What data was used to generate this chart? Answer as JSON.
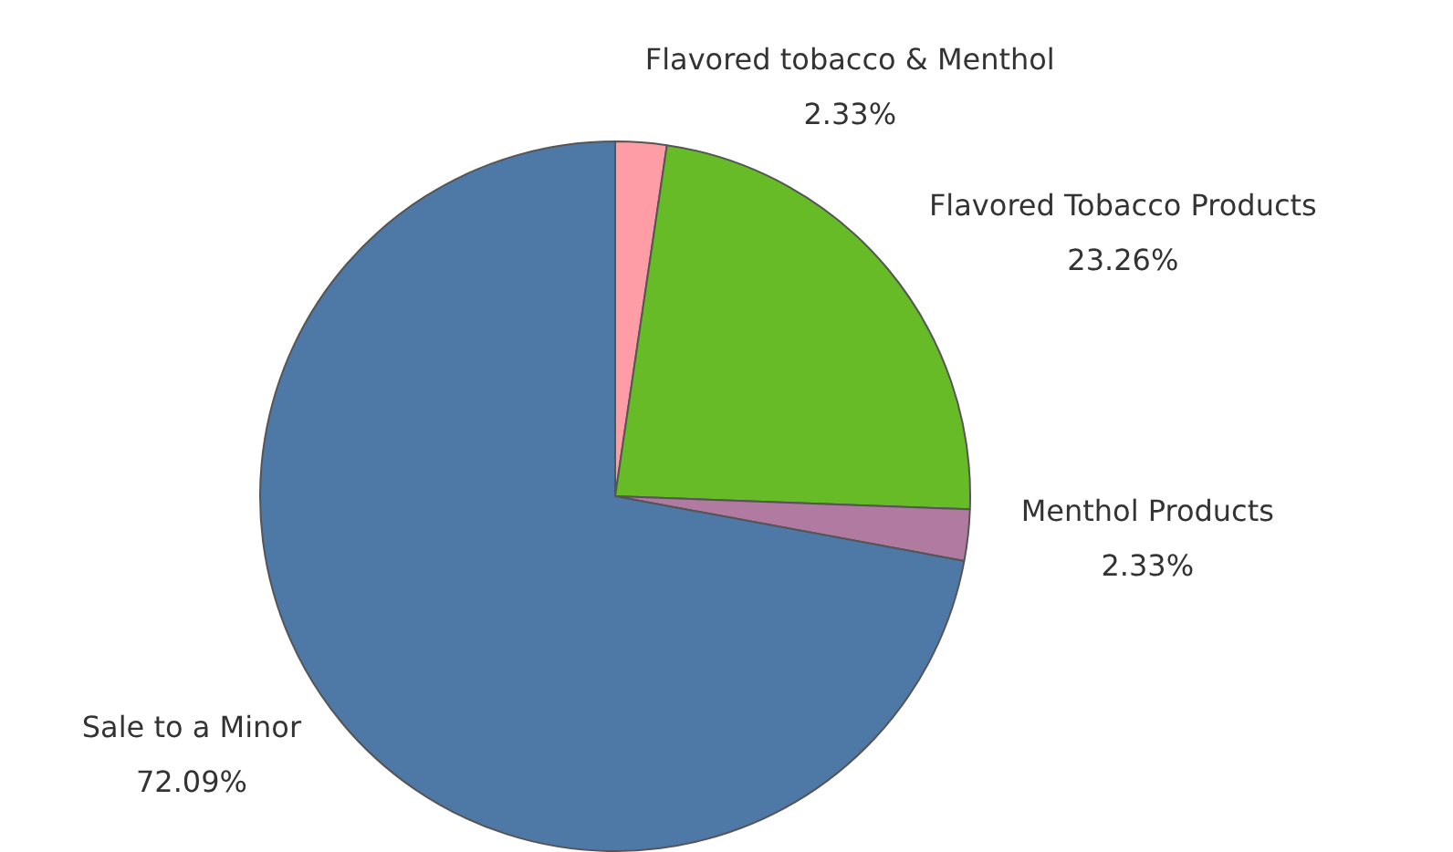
{
  "chart_data": {
    "type": "pie",
    "categories": [
      "Flavored tobacco & Menthol",
      "Flavored Tobacco Products",
      "Menthol Products",
      "Sale to a Minor"
    ],
    "values": [
      2.33,
      23.26,
      2.33,
      72.09
    ],
    "colors": [
      "#ff9da7",
      "#66bb26",
      "#b07aa1",
      "#4e79a7"
    ],
    "value_labels": [
      "2.33%",
      "23.26%",
      "2.33%",
      "72.09%"
    ],
    "legend": false
  }
}
